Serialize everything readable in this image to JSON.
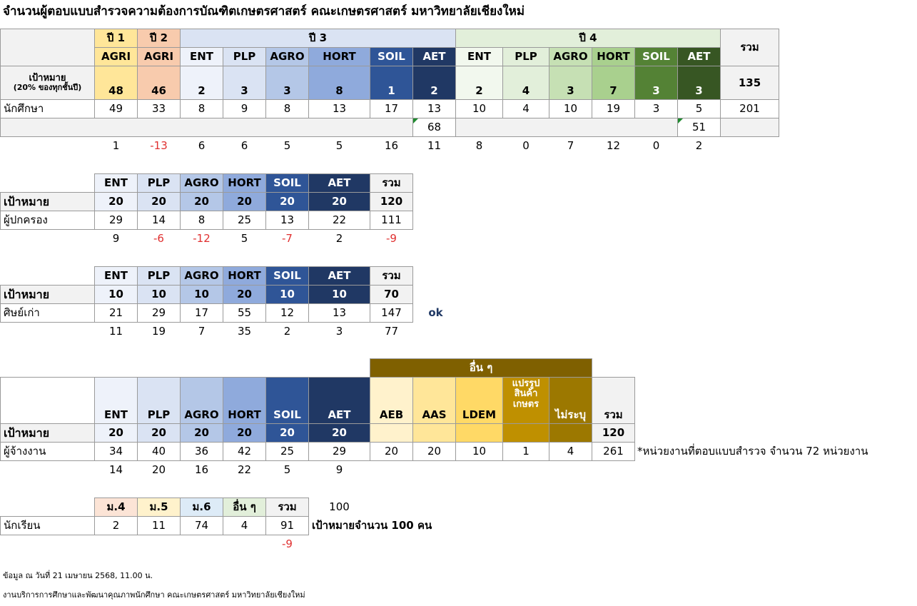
{
  "title": "จำนวนผู้ตอบแบบสำรวจความต้องการบัณฑิตเกษตรศาสตร์ คณะเกษตรศาสตร์ มหาวิทยาลัยเชียงใหม่",
  "students": {
    "year_headers": [
      "ปี 1",
      "ปี 2",
      "ปี 3",
      "ปี 4"
    ],
    "total_header": "รวม",
    "majors": [
      "AGRI",
      "AGRI",
      "ENT",
      "PLP",
      "AGRO",
      "HORT",
      "SOIL",
      "AET",
      "ENT",
      "PLP",
      "AGRO",
      "HORT",
      "SOIL",
      "AET"
    ],
    "target_label": "เป้าหมาย",
    "target_note": "(20% ของทุกชั้นปี)",
    "targets": [
      48,
      46,
      2,
      3,
      3,
      8,
      1,
      2,
      2,
      4,
      3,
      7,
      3,
      3
    ],
    "target_total": 135,
    "row_label": "นักศึกษา",
    "counts": [
      49,
      33,
      8,
      9,
      8,
      13,
      17,
      13,
      10,
      4,
      10,
      19,
      3,
      5
    ],
    "count_total": 201,
    "subtotals": [
      68,
      51
    ],
    "differences": [
      1,
      -13,
      6,
      6,
      5,
      5,
      16,
      11,
      8,
      0,
      7,
      12,
      0,
      2
    ]
  },
  "parents": {
    "headers": [
      "ENT",
      "PLP",
      "AGRO",
      "HORT",
      "SOIL",
      "AET",
      "รวม"
    ],
    "target_label": "เป้าหมาย",
    "targets": [
      20,
      20,
      20,
      20,
      20,
      20,
      120
    ],
    "row_label": "ผู้ปกครอง",
    "counts": [
      29,
      14,
      8,
      25,
      13,
      22,
      111
    ],
    "differences": [
      9,
      -6,
      -12,
      5,
      -7,
      2,
      -9
    ]
  },
  "alumni": {
    "headers": [
      "ENT",
      "PLP",
      "AGRO",
      "HORT",
      "SOIL",
      "AET",
      "รวม"
    ],
    "target_label": "เป้าหมาย",
    "targets": [
      10,
      10,
      10,
      20,
      10,
      10,
      70
    ],
    "row_label": "ศิษย์เก่า",
    "counts": [
      21,
      29,
      17,
      55,
      12,
      13,
      147
    ],
    "differences": [
      11,
      19,
      7,
      35,
      2,
      3,
      77
    ],
    "note": "ok"
  },
  "employers": {
    "group_header": "อื่น ๆ",
    "headers": [
      "ENT",
      "PLP",
      "AGRO",
      "HORT",
      "SOIL",
      "AET",
      "AEB",
      "AAS",
      "LDEM",
      "แปรรูป\nสินค้า\nเกษตร",
      "ไม่ระบุ",
      "รวม"
    ],
    "target_label": "เป้าหมาย",
    "targets": [
      20,
      20,
      20,
      20,
      20,
      20
    ],
    "target_total": 120,
    "row_label": "ผู้จ้างงาน",
    "counts": [
      34,
      40,
      36,
      42,
      25,
      29,
      20,
      20,
      10,
      1,
      4,
      261
    ],
    "differences": [
      14,
      20,
      16,
      22,
      5,
      9
    ],
    "note": "*หน่วยงานที่ตอบแบบสำรวจ จำนวน 72 หน่วยงาน"
  },
  "school": {
    "headers": [
      "ม.4",
      "ม.5",
      "ม.6",
      "อื่น ๆ",
      "รวม"
    ],
    "target": 100,
    "row_label": "นักเรียน",
    "counts": [
      2,
      11,
      74,
      4,
      91
    ],
    "target_note": "เป้าหมายจำนวน 100 คน",
    "difference": -9
  },
  "footer": [
    "ข้อมูล ณ วันที่ 21 เมษายน 2568, 11.00 น.",
    "งานบริการการศึกษาและพัฒนาคุณภาพนักศึกษา คณะเกษตรศาสตร์ มหาวิทยาลัยเชียงใหม่"
  ]
}
